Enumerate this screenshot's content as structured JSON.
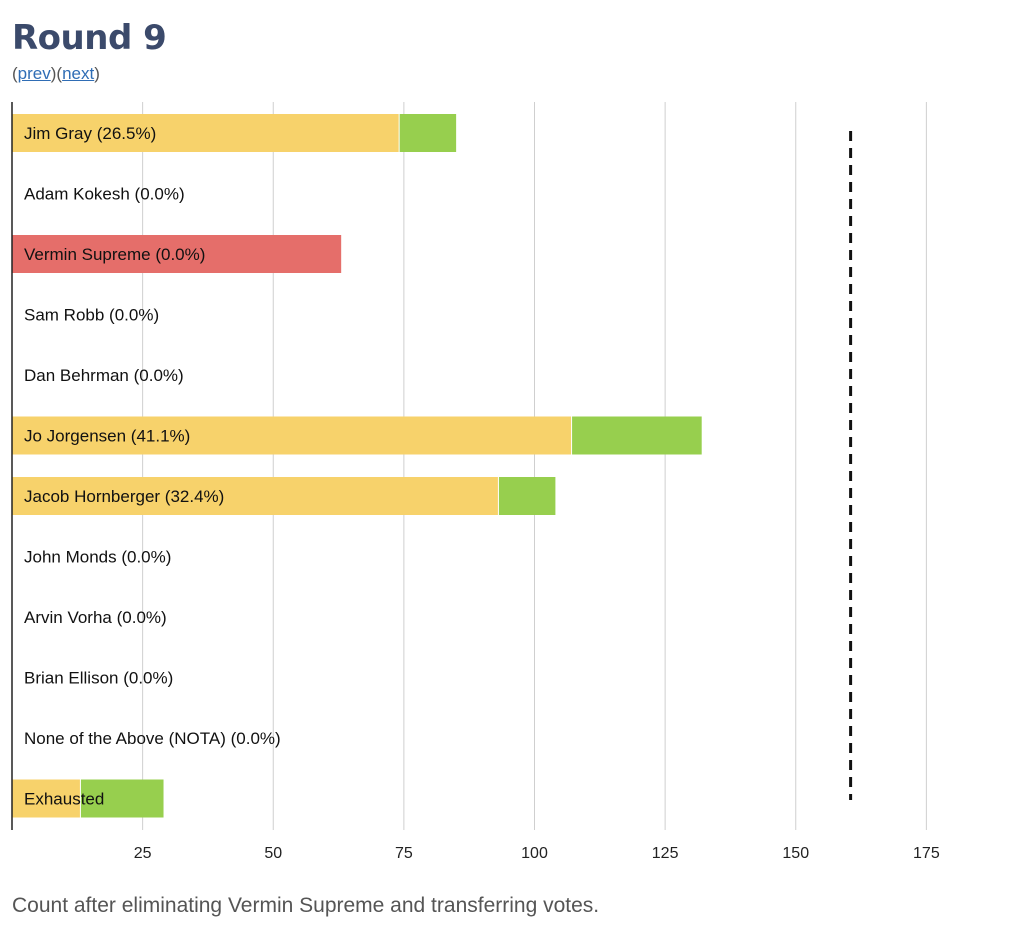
{
  "header": {
    "title": "Round 9",
    "prev_label": "prev",
    "next_label": "next"
  },
  "caption": "Count after eliminating Vermin Supreme and transferring votes.",
  "chart_data": {
    "type": "bar",
    "orientation": "horizontal",
    "stacked": true,
    "xlim": [
      0,
      187
    ],
    "xticks": [
      25,
      50,
      75,
      100,
      125,
      150,
      175
    ],
    "grid": true,
    "threshold": 160.5,
    "threshold_style": "dashed",
    "colors": {
      "prior": "#f7d26b",
      "transferred": "#97cf4e",
      "eliminated": "#e56e6a"
    },
    "rows": [
      {
        "label": "Jim Gray (26.5%)",
        "prior": 74,
        "transferred": 11,
        "eliminated": 0
      },
      {
        "label": "Adam Kokesh (0.0%)",
        "prior": 0,
        "transferred": 0,
        "eliminated": 0
      },
      {
        "label": "Vermin Supreme (0.0%)",
        "prior": 0,
        "transferred": 0,
        "eliminated": 63
      },
      {
        "label": "Sam Robb (0.0%)",
        "prior": 0,
        "transferred": 0,
        "eliminated": 0
      },
      {
        "label": "Dan Behrman (0.0%)",
        "prior": 0,
        "transferred": 0,
        "eliminated": 0
      },
      {
        "label": "Jo Jorgensen (41.1%)",
        "prior": 107,
        "transferred": 25,
        "eliminated": 0
      },
      {
        "label": "Jacob Hornberger (32.4%)",
        "prior": 93,
        "transferred": 11,
        "eliminated": 0
      },
      {
        "label": "John Monds (0.0%)",
        "prior": 0,
        "transferred": 0,
        "eliminated": 0
      },
      {
        "label": "Arvin Vorha (0.0%)",
        "prior": 0,
        "transferred": 0,
        "eliminated": 0
      },
      {
        "label": "Brian Ellison (0.0%)",
        "prior": 0,
        "transferred": 0,
        "eliminated": 0
      },
      {
        "label": "None of the Above (NOTA) (0.0%)",
        "prior": 0,
        "transferred": 0,
        "eliminated": 0
      },
      {
        "label": "Exhausted",
        "prior": 13,
        "transferred": 16,
        "eliminated": 0
      }
    ]
  }
}
